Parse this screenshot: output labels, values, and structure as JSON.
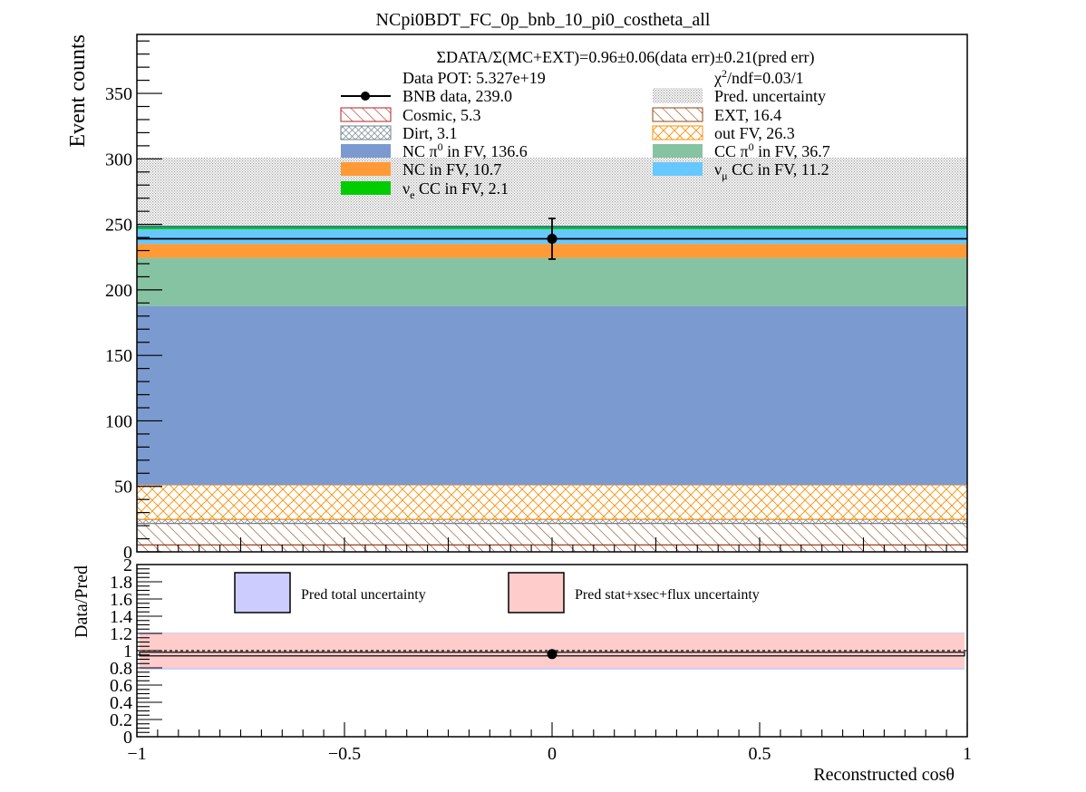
{
  "chart_data": [
    {
      "type": "bar",
      "title": "NCpi0BDT_FC_0p_bnb_10_pi0_costheta_all",
      "ylabel": "Event counts",
      "xlim": [
        -1,
        1
      ],
      "ylim": [
        0,
        395
      ],
      "y_ticks": [
        "0",
        "50",
        "100",
        "150",
        "200",
        "250",
        "300",
        "350"
      ],
      "bin_edges": [
        -1,
        1
      ],
      "stack_order_bottom_to_top": [
        "Cosmic",
        "EXT",
        "Dirt",
        "out FV",
        "NC π0 in FV",
        "CC π0 in FV",
        "NC in FV",
        "νμ CC in FV",
        "νe CC in FV"
      ],
      "stack": [
        {
          "key": "Cosmic",
          "label": "Cosmic, 5.3",
          "value": 5.3,
          "color": "#b22222",
          "fill": "hatch-red"
        },
        {
          "key": "EXT",
          "label": "EXT, 16.4",
          "value": 16.4,
          "color": "#8b4513",
          "fill": "hatch-brown"
        },
        {
          "key": "Dirt",
          "label": "Dirt, 3.1",
          "value": 3.1,
          "color": "#708090",
          "fill": "hatch-grey"
        },
        {
          "key": "out FV",
          "label": "out FV, 26.3",
          "value": 26.3,
          "color": "#ff8c00",
          "fill": "crosshatch-orange"
        },
        {
          "key": "NC π0 in FV",
          "label_pre": "NC π",
          "label_sup": "0",
          "label_post": " in FV,  136.6",
          "value": 136.6,
          "color": "#7b9ad0",
          "fill": "solid"
        },
        {
          "key": "CC π0 in FV",
          "label_pre": "CC π",
          "label_sup": "0",
          "label_post": " in FV, 36.7",
          "value": 36.7,
          "color": "#86c3a2",
          "fill": "solid"
        },
        {
          "key": "NC in FV",
          "label": "NC in FV, 10.7",
          "value": 10.7,
          "color": "#ff9a36",
          "fill": "solid"
        },
        {
          "key": "νμ CC in FV",
          "label_pre": "ν",
          "label_sub": "μ",
          "label_post": " CC in FV, 11.2",
          "value": 11.2,
          "color": "#66c8ff",
          "fill": "solid"
        },
        {
          "key": "νe CC in FV",
          "label_pre": "ν",
          "label_sub": "e",
          "label_post": " CC in FV, 2.1",
          "value": 2.1,
          "color": "#00cc00",
          "fill": "solid"
        }
      ],
      "pred_total": 248.6,
      "pred_uncertainty_band": [
        196,
        301
      ],
      "data_points": [
        {
          "x": 0,
          "y": 239.0,
          "err_low": 15.5,
          "err_high": 15.5
        }
      ],
      "legend": {
        "header_line1": "ΣDATA/Σ(MC+EXT)=0.96±0.06(data err)±0.21(pred err)",
        "data_pot": "Data POT: 5.327e+19",
        "chi2_pre": "χ",
        "chi2_sup": "2",
        "chi2_post": "/ndf=0.03/1",
        "data_label": "BNB data, 239.0",
        "pred_unc_label": "Pred. uncertainty"
      }
    },
    {
      "type": "scatter",
      "ylabel": "Data/Pred",
      "xlabel_pre": "Reconstructed cos",
      "xlabel_theta": "θ",
      "xlim": [
        -1,
        1
      ],
      "ylim": [
        0,
        2
      ],
      "x_ticks": [
        "−1",
        "−0.5",
        "0",
        "0.5",
        "1"
      ],
      "y_ticks": [
        "0",
        "0.2",
        "0.4",
        "0.6",
        "0.8",
        "1",
        "1.2",
        "1.4",
        "1.6",
        "1.8",
        "2"
      ],
      "ratio_points": [
        {
          "x": 0,
          "y": 0.96
        }
      ],
      "ratio_bin_value": 0.96,
      "total_uncertainty_band": [
        0.78,
        1.21
      ],
      "stat_xsec_flux_band": [
        0.8,
        1.2
      ],
      "legend": [
        {
          "label": "Pred total uncertainty",
          "color": "#ccccff"
        },
        {
          "label": "Pred stat+xsec+flux uncertainty",
          "color": "#ffcccc"
        }
      ]
    }
  ]
}
